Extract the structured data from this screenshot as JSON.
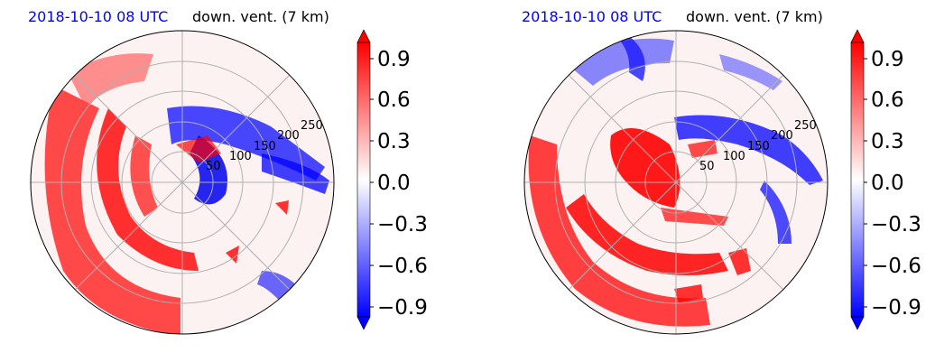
{
  "panels": [
    {
      "title_left": "2018-10-10 08 UTC",
      "title_right": "down. vent. (7 km)",
      "range_labels": [
        "50",
        "100",
        "150",
        "200",
        "250"
      ]
    },
    {
      "title_left": "2018-10-10 08 UTC",
      "title_right": "down. vent. (7 km)",
      "range_labels": [
        "50",
        "100",
        "150",
        "200",
        "250"
      ]
    }
  ],
  "colorbar": {
    "ticks": [
      "0.9",
      "0.6",
      "0.3",
      "0.0",
      "−0.3",
      "−0.6",
      "−0.9"
    ],
    "vmin": -1.0,
    "vmax": 1.0,
    "colormap": "bwr",
    "extend": "both"
  },
  "chart_data": [
    {
      "type": "heatmap",
      "projection": "polar",
      "variable": "down. vent. (7 km)",
      "time": "2018-10-10 08 UTC",
      "range_ticks": [
        50,
        100,
        150,
        200,
        250
      ],
      "color_range": [
        -1.0,
        1.0
      ],
      "colorbar_ticks": [
        -0.9,
        -0.6,
        -0.3,
        0.0,
        0.3,
        0.6,
        0.9
      ],
      "grid": true
    },
    {
      "type": "heatmap",
      "projection": "polar",
      "variable": "down. vent. (7 km)",
      "time": "2018-10-10 08 UTC",
      "range_ticks": [
        50,
        100,
        150,
        200,
        250
      ],
      "color_range": [
        -1.0,
        1.0
      ],
      "colorbar_ticks": [
        -0.9,
        -0.6,
        -0.3,
        0.0,
        0.3,
        0.6,
        0.9
      ],
      "grid": true
    }
  ]
}
